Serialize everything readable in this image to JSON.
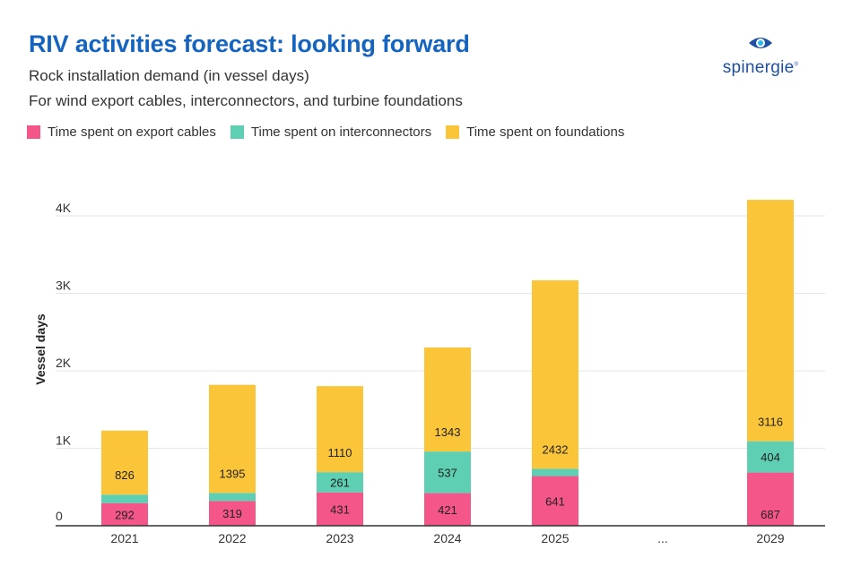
{
  "title": "RIV activities forecast: looking forward",
  "subtitle_1": "Rock installation demand (in vessel days)",
  "subtitle_2": "For wind export cables, interconnectors, and turbine foundations",
  "logo": {
    "text": "spinergie",
    "mark": "®"
  },
  "colors": {
    "export": "#f4568a",
    "interconnectors": "#5ecfb2",
    "foundations": "#fbc53a",
    "title": "#1565c0",
    "logo": "#1e4fa0"
  },
  "chart_data": {
    "type": "bar",
    "stacked": true,
    "ylabel": "Vessel days",
    "yticks": [
      "0",
      "1K",
      "2K",
      "3K",
      "4K"
    ],
    "yticks_values": [
      0,
      1000,
      2000,
      3000,
      4000
    ],
    "ylim": [
      0,
      4200
    ],
    "grid": true,
    "legend_position": "top-left",
    "categories": [
      "2021",
      "2022",
      "2023",
      "2024",
      "2025",
      "...",
      "2029"
    ],
    "series": [
      {
        "name": "Time spent on export cables",
        "color": "#f4568a",
        "values": [
          292,
          319,
          431,
          421,
          641,
          null,
          687
        ],
        "labels": [
          "292",
          "319",
          "431",
          "421",
          "641",
          "",
          "687"
        ]
      },
      {
        "name": "Time spent on interconnectors",
        "color": "#5ecfb2",
        "values": [
          110,
          105,
          261,
          537,
          95,
          null,
          404
        ],
        "labels": [
          "",
          "",
          "261",
          "537",
          "",
          "",
          "404"
        ]
      },
      {
        "name": "Time spent on foundations",
        "color": "#fbc53a",
        "values": [
          826,
          1395,
          1110,
          1343,
          2432,
          null,
          3116
        ],
        "labels": [
          "826",
          "1395",
          "1110",
          "1343",
          "2432",
          "",
          "3116"
        ]
      }
    ]
  }
}
